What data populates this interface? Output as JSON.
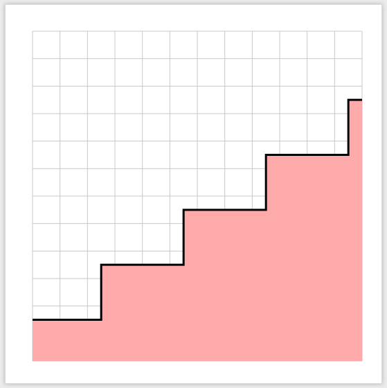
{
  "colors": {
    "background": "#ffffff",
    "grid": "#c8c8c8",
    "fill": "#ffaaaa",
    "outline": "#000000"
  },
  "grid": {
    "columns": 12,
    "rows": 12
  },
  "staircase": {
    "start_level": 1.5,
    "steps": [
      {
        "from_col": 0,
        "to_col": 2.5,
        "level": 1.5
      },
      {
        "from_col": 2.5,
        "to_col": 5.5,
        "level": 3.5
      },
      {
        "from_col": 5.5,
        "to_col": 8.5,
        "level": 5.5
      },
      {
        "from_col": 8.5,
        "to_col": 11.5,
        "level": 7.5
      },
      {
        "from_col": 11.5,
        "to_col": 12,
        "level": 9.5
      }
    ]
  }
}
